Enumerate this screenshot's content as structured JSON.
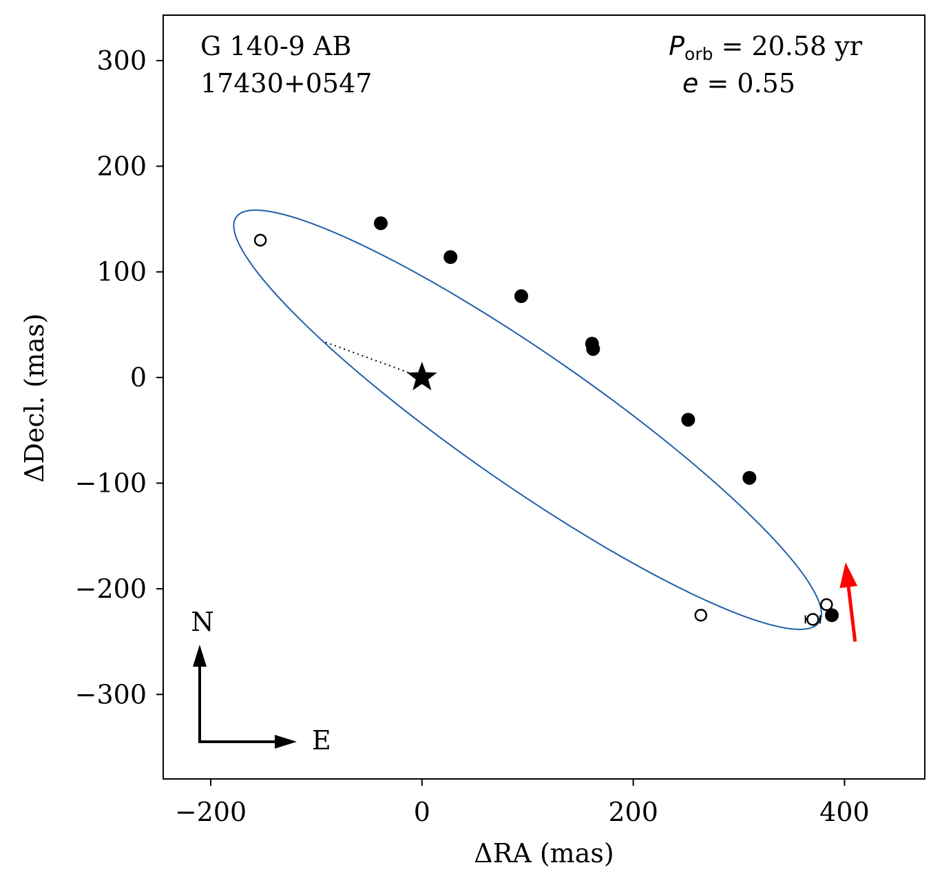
{
  "chart_data": {
    "type": "scatter",
    "title_lines": [
      "G 140-9 AB",
      "17430+0547"
    ],
    "params": {
      "period_symbol": "P",
      "period_subscript": "orb",
      "period_value": " = 20.58 yr",
      "ecc_symbol": "e",
      "ecc_value": " = 0.55"
    },
    "xlabel": "ΔRA  (mas)",
    "ylabel": "ΔDecl.  (mas)",
    "xlim": [
      -245,
      476
    ],
    "ylim": [
      -380,
      343
    ],
    "xticks": [
      {
        "value": -200,
        "label": "−200"
      },
      {
        "value": 0,
        "label": "0"
      },
      {
        "value": 200,
        "label": "200"
      },
      {
        "value": 400,
        "label": "400"
      }
    ],
    "yticks": [
      {
        "value": -300,
        "label": "−300"
      },
      {
        "value": -200,
        "label": "−200"
      },
      {
        "value": -100,
        "label": "−100"
      },
      {
        "value": 0,
        "label": "0"
      },
      {
        "value": 100,
        "label": "100"
      },
      {
        "value": 200,
        "label": "200"
      },
      {
        "value": 300,
        "label": "300"
      }
    ],
    "orbit": {
      "color": "#1f5fa8",
      "center": [
        100,
        -40
      ],
      "semi_major": 336,
      "semi_minor": 62,
      "angle_deg": -34.8
    },
    "primary_star": {
      "x": 0,
      "y": 0
    },
    "periastron_line": {
      "from": [
        0,
        0
      ],
      "to": [
        -93,
        34
      ]
    },
    "filled_points": [
      {
        "x": -39,
        "y": 146
      },
      {
        "x": 27,
        "y": 114
      },
      {
        "x": 94,
        "y": 77
      },
      {
        "x": 161,
        "y": 32
      },
      {
        "x": 162,
        "y": 27
      },
      {
        "x": 252,
        "y": -40
      },
      {
        "x": 310,
        "y": -95
      },
      {
        "x": 388,
        "y": -225
      }
    ],
    "open_points": [
      {
        "x": -153,
        "y": 130
      },
      {
        "x": 264,
        "y": -225
      },
      {
        "x": 383,
        "y": -215
      },
      {
        "x": 370,
        "y": -229,
        "xerr": 7
      }
    ],
    "motion_arrow": {
      "from": [
        410,
        -250
      ],
      "to": [
        401,
        -175
      ],
      "color": "#ff0000"
    },
    "compass": {
      "north_label": "N",
      "east_label": "E"
    }
  }
}
